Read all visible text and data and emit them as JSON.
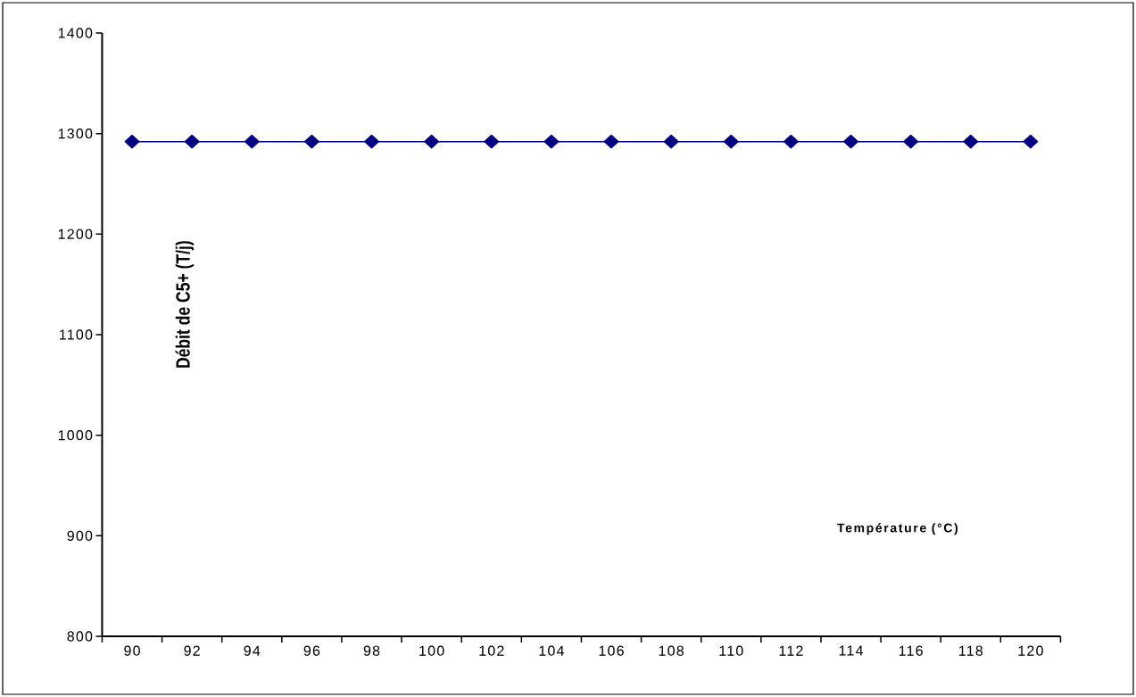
{
  "chart_data": {
    "type": "line",
    "categories": [
      "90",
      "92",
      "94",
      "96",
      "98",
      "100",
      "102",
      "104",
      "106",
      "108",
      "110",
      "112",
      "114",
      "116",
      "118",
      "120"
    ],
    "series": [
      {
        "color": "#000080",
        "values": [
          1292,
          1292,
          1292,
          1292,
          1292,
          1292,
          1292,
          1292,
          1292,
          1292,
          1292,
          1292,
          1292,
          1292,
          1292,
          1292
        ]
      }
    ],
    "xlabel": "Température (°C)",
    "ylabel": "Débit de C5+ (T/j)",
    "ylim": [
      800,
      1400
    ],
    "yticks": [
      800,
      900,
      1000,
      1100,
      1200,
      1300,
      1400
    ],
    "marker": "diamond",
    "line_style": "solid",
    "grid": false
  }
}
